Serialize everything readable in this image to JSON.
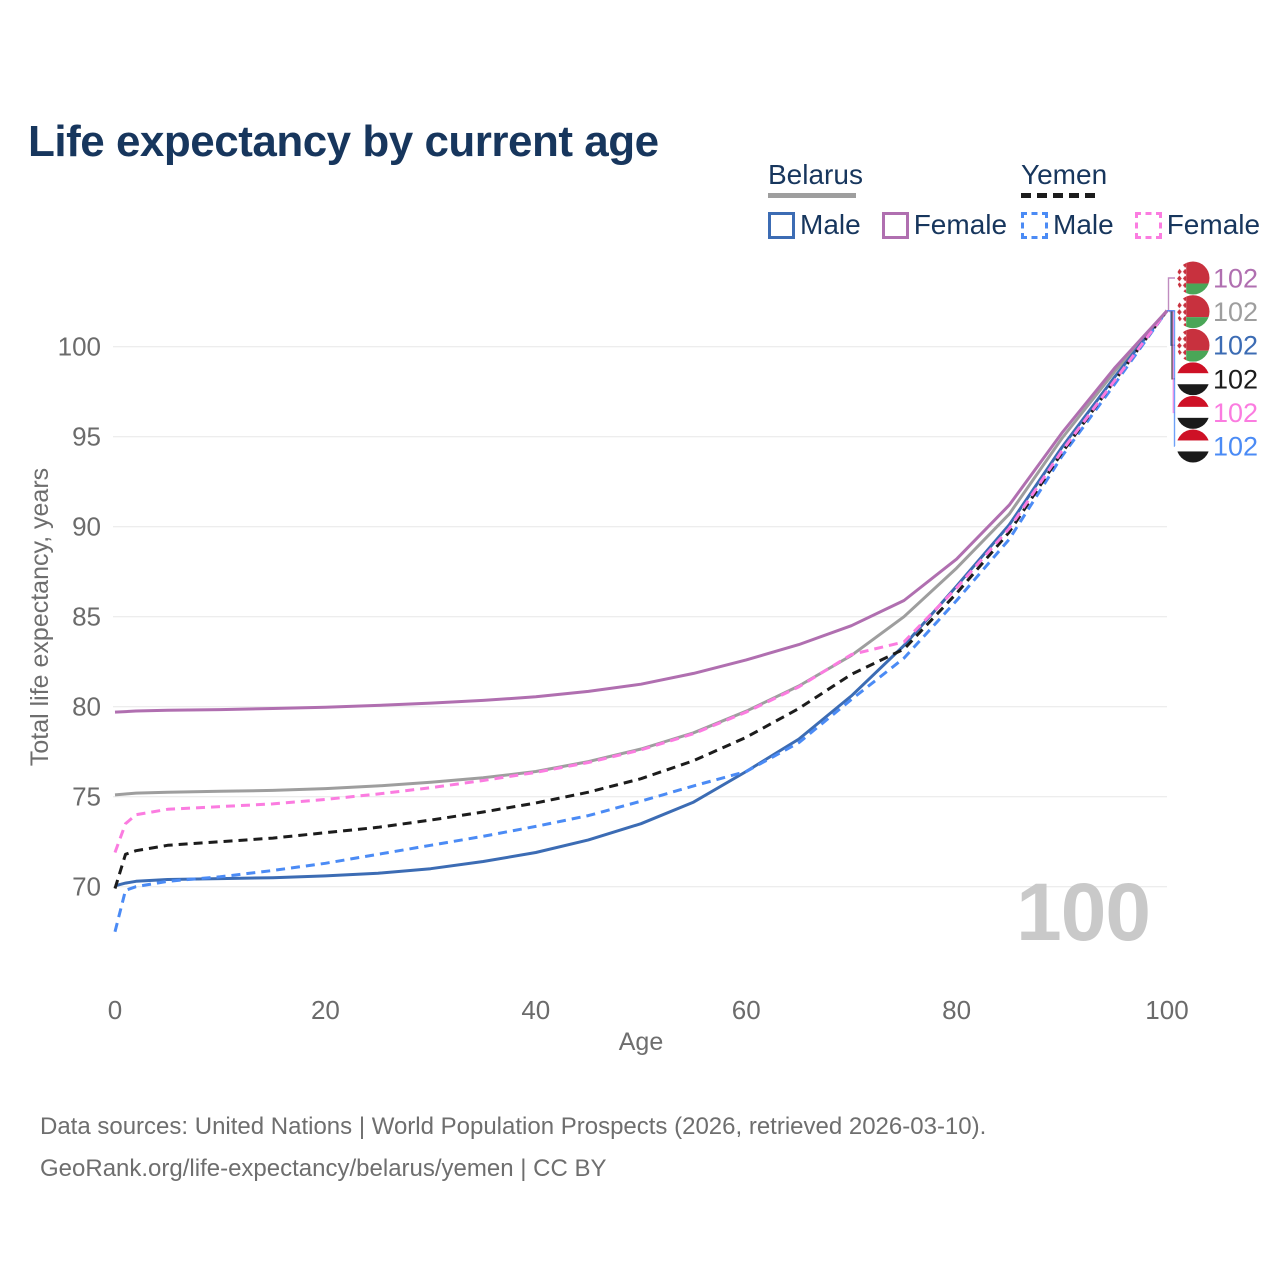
{
  "title": "Life expectancy by current age",
  "watermark_age": "100",
  "legend": {
    "groups": [
      {
        "name": "Belarus",
        "line_style": "solid",
        "line_color": "#9e9e9e",
        "items": [
          {
            "label": "Male",
            "color": "#3c6cb4",
            "dashed": false
          },
          {
            "label": "Female",
            "color": "#b06fb0",
            "dashed": false
          }
        ]
      },
      {
        "name": "Yemen",
        "line_style": "dashed",
        "line_color": "#1c1c1c",
        "items": [
          {
            "label": "Male",
            "color": "#4b8bf5",
            "dashed": true
          },
          {
            "label": "Female",
            "color": "#fb7ce0",
            "dashed": true
          }
        ]
      }
    ]
  },
  "footer": {
    "line1": "Data sources: United Nations | World Population Prospects (2026, retrieved 2026-03-10).",
    "line2": "GeoRank.org/life-expectancy/belarus/yemen | CC BY"
  },
  "flags": {
    "belarus": {
      "red": "#c8313e",
      "green": "#4aa657",
      "white": "#ffffff"
    },
    "yemen": {
      "red": "#ce1126",
      "white": "#ffffff",
      "black": "#1a1a1a"
    }
  },
  "chart_data": {
    "type": "line",
    "title": "Life expectancy by current age",
    "xlabel": "Age",
    "ylabel": "Total life expectancy, years",
    "xlim": [
      0,
      100
    ],
    "ylim": [
      66,
      103
    ],
    "xticks": [
      "0",
      "20",
      "40",
      "60",
      "80",
      "100"
    ],
    "yticks": [
      "70",
      "75",
      "80",
      "85",
      "90",
      "95",
      "100"
    ],
    "grid": "horizontal",
    "legend_position": "top-right",
    "x": [
      0,
      1,
      2,
      5,
      10,
      15,
      20,
      25,
      30,
      35,
      40,
      45,
      50,
      55,
      60,
      65,
      70,
      75,
      80,
      85,
      90,
      95,
      100
    ],
    "series": [
      {
        "name": "Belarus Female",
        "country": "Belarus",
        "sex": "Female",
        "color": "#b06fb0",
        "dash": "solid",
        "end_label": "102",
        "values": [
          79.7,
          79.73,
          79.76,
          79.8,
          79.84,
          79.9,
          79.97,
          80.07,
          80.2,
          80.35,
          80.55,
          80.85,
          81.25,
          81.85,
          82.6,
          83.45,
          84.5,
          85.9,
          88.2,
          91.2,
          95.2,
          98.8,
          102
        ]
      },
      {
        "name": "Belarus Both sexes",
        "country": "Belarus",
        "sex": "Both",
        "color": "#9e9e9e",
        "dash": "solid",
        "end_label": "102",
        "values": [
          75.1,
          75.15,
          75.2,
          75.25,
          75.3,
          75.35,
          75.45,
          75.6,
          75.8,
          76.05,
          76.4,
          76.95,
          77.65,
          78.55,
          79.75,
          81.15,
          82.85,
          85.0,
          87.7,
          90.7,
          94.9,
          98.6,
          102
        ]
      },
      {
        "name": "Belarus Male",
        "country": "Belarus",
        "sex": "Male",
        "color": "#3c6cb4",
        "dash": "solid",
        "end_label": "102",
        "values": [
          70.05,
          70.2,
          70.3,
          70.4,
          70.45,
          70.5,
          70.6,
          70.75,
          71.0,
          71.4,
          71.9,
          72.6,
          73.5,
          74.7,
          76.4,
          78.2,
          80.6,
          83.4,
          86.7,
          90.1,
          94.4,
          98.3,
          102
        ]
      },
      {
        "name": "Yemen Both sexes",
        "country": "Yemen",
        "sex": "Both",
        "color": "#1c1c1c",
        "dash": "dashed",
        "end_label": "102",
        "values": [
          69.9,
          71.8,
          72.0,
          72.3,
          72.5,
          72.7,
          73.0,
          73.3,
          73.7,
          74.15,
          74.65,
          75.25,
          76.0,
          77.0,
          78.3,
          79.9,
          81.8,
          83.2,
          86.3,
          89.7,
          94.1,
          98.1,
          102
        ]
      },
      {
        "name": "Yemen Female",
        "country": "Yemen",
        "sex": "Female",
        "color": "#fb7ce0",
        "dash": "dashed",
        "end_label": "102",
        "values": [
          71.9,
          73.5,
          74.0,
          74.3,
          74.45,
          74.6,
          74.85,
          75.15,
          75.5,
          75.9,
          76.35,
          76.9,
          77.6,
          78.5,
          79.7,
          81.1,
          82.9,
          83.6,
          86.6,
          89.9,
          94.2,
          98.1,
          102
        ]
      },
      {
        "name": "Yemen Male",
        "country": "Yemen",
        "sex": "Male",
        "color": "#4b8bf5",
        "dash": "dashed",
        "end_label": "102",
        "values": [
          67.5,
          69.8,
          70.0,
          70.3,
          70.55,
          70.9,
          71.3,
          71.8,
          72.3,
          72.8,
          73.35,
          73.95,
          74.75,
          75.6,
          76.4,
          78.0,
          80.4,
          82.7,
          85.9,
          89.3,
          93.9,
          97.9,
          102
        ]
      }
    ]
  }
}
